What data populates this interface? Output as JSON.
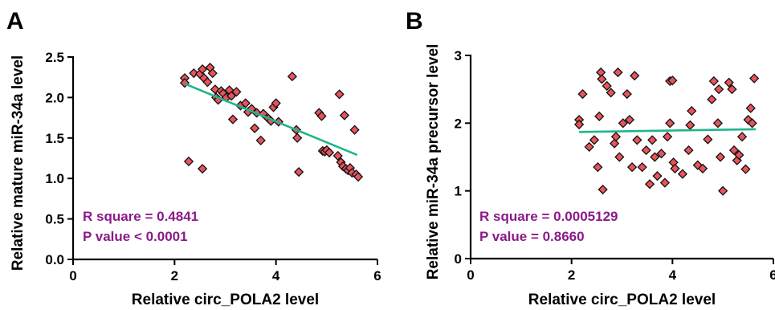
{
  "chart_data": [
    {
      "type": "scatter",
      "panel_label": "A",
      "xlabel": "Relative circ_POLA2 level",
      "ylabel": "Relative mature miR-34a level",
      "xlim": [
        0,
        6
      ],
      "ylim": [
        0,
        2.5
      ],
      "x_ticks": [
        "0",
        "2",
        "4",
        "6"
      ],
      "y_ticks": [
        "0.0",
        "0.5",
        "1.0",
        "1.5",
        "2.0",
        "2.5"
      ],
      "annotations": [
        "R square = 0.4841",
        "P value < 0.0001"
      ],
      "annotation_color": "#8b1a89",
      "marker_color": "#e8545a",
      "fit_line_color": "#1fb58a",
      "fit_line": {
        "x": [
          2.2,
          5.6
        ],
        "y": [
          2.17,
          1.29
        ]
      },
      "points": [
        [
          2.2,
          2.24
        ],
        [
          2.2,
          2.18
        ],
        [
          2.28,
          1.21
        ],
        [
          2.38,
          2.3
        ],
        [
          2.5,
          2.29
        ],
        [
          2.55,
          2.35
        ],
        [
          2.58,
          2.24
        ],
        [
          2.65,
          2.19
        ],
        [
          2.7,
          2.37
        ],
        [
          2.75,
          2.3
        ],
        [
          2.8,
          2.1
        ],
        [
          2.82,
          2.0
        ],
        [
          2.86,
          1.97
        ],
        [
          2.92,
          2.08
        ],
        [
          2.96,
          2.05
        ],
        [
          3.02,
          2.0
        ],
        [
          3.08,
          2.09
        ],
        [
          3.12,
          2.02
        ],
        [
          3.15,
          1.73
        ],
        [
          3.22,
          2.07
        ],
        [
          3.3,
          1.9
        ],
        [
          3.4,
          1.93
        ],
        [
          3.45,
          1.82
        ],
        [
          3.52,
          1.86
        ],
        [
          3.58,
          1.62
        ],
        [
          3.62,
          1.81
        ],
        [
          3.7,
          1.47
        ],
        [
          3.75,
          1.8
        ],
        [
          3.85,
          1.74
        ],
        [
          3.9,
          1.71
        ],
        [
          3.95,
          1.88
        ],
        [
          4.0,
          1.93
        ],
        [
          4.05,
          1.7
        ],
        [
          4.32,
          2.26
        ],
        [
          4.4,
          1.6
        ],
        [
          4.42,
          1.5
        ],
        [
          4.45,
          1.08
        ],
        [
          4.85,
          1.81
        ],
        [
          4.9,
          1.77
        ],
        [
          4.92,
          1.34
        ],
        [
          4.96,
          1.33
        ],
        [
          5.0,
          1.35
        ],
        [
          5.05,
          1.32
        ],
        [
          5.22,
          1.28
        ],
        [
          5.25,
          2.04
        ],
        [
          5.28,
          1.2
        ],
        [
          5.32,
          1.15
        ],
        [
          5.35,
          1.78
        ],
        [
          5.38,
          1.12
        ],
        [
          5.42,
          1.1
        ],
        [
          5.46,
          1.13
        ],
        [
          5.5,
          1.07
        ],
        [
          5.55,
          1.6
        ],
        [
          5.58,
          1.05
        ],
        [
          5.62,
          1.02
        ],
        [
          2.55,
          1.12
        ]
      ]
    },
    {
      "type": "scatter",
      "panel_label": "B",
      "xlabel": "Relative circ_POLA2 level",
      "ylabel": "Relative miR-34a precursor level",
      "xlim": [
        0,
        6
      ],
      "ylim": [
        0,
        3
      ],
      "x_ticks": [
        "0",
        "2",
        "4",
        "6"
      ],
      "y_ticks": [
        "0",
        "1",
        "2",
        "3"
      ],
      "annotations": [
        "R square = 0.0005129",
        "P value = 0.8660"
      ],
      "annotation_color": "#8b1a89",
      "marker_color": "#e8545a",
      "fit_line_color": "#1fb58a",
      "fit_line": {
        "x": [
          2.15,
          5.65
        ],
        "y": [
          1.87,
          1.91
        ]
      },
      "points": [
        [
          2.15,
          2.05
        ],
        [
          2.15,
          1.98
        ],
        [
          2.22,
          2.43
        ],
        [
          2.35,
          1.65
        ],
        [
          2.45,
          1.75
        ],
        [
          2.52,
          1.35
        ],
        [
          2.55,
          2.1
        ],
        [
          2.58,
          2.75
        ],
        [
          2.6,
          2.65
        ],
        [
          2.62,
          1.02
        ],
        [
          2.7,
          2.55
        ],
        [
          2.78,
          2.45
        ],
        [
          2.85,
          1.7
        ],
        [
          2.88,
          1.8
        ],
        [
          2.92,
          2.75
        ],
        [
          2.95,
          1.5
        ],
        [
          3.02,
          2.0
        ],
        [
          3.1,
          2.43
        ],
        [
          3.15,
          2.05
        ],
        [
          3.2,
          1.35
        ],
        [
          3.25,
          2.7
        ],
        [
          3.3,
          1.75
        ],
        [
          3.4,
          1.35
        ],
        [
          3.48,
          1.6
        ],
        [
          3.55,
          1.1
        ],
        [
          3.6,
          1.75
        ],
        [
          3.65,
          1.5
        ],
        [
          3.7,
          1.22
        ],
        [
          3.78,
          1.55
        ],
        [
          3.85,
          1.12
        ],
        [
          3.9,
          1.8
        ],
        [
          3.95,
          2.62
        ],
        [
          4.0,
          2.63
        ],
        [
          3.95,
          2.0
        ],
        [
          4.02,
          1.42
        ],
        [
          4.05,
          1.33
        ],
        [
          4.2,
          1.25
        ],
        [
          4.32,
          1.6
        ],
        [
          4.35,
          1.97
        ],
        [
          4.38,
          2.18
        ],
        [
          4.5,
          1.38
        ],
        [
          4.6,
          1.33
        ],
        [
          4.7,
          1.76
        ],
        [
          4.78,
          2.35
        ],
        [
          4.82,
          2.62
        ],
        [
          4.9,
          2.0
        ],
        [
          4.92,
          2.5
        ],
        [
          4.95,
          1.5
        ],
        [
          5.0,
          1.0
        ],
        [
          5.12,
          2.6
        ],
        [
          5.18,
          2.5
        ],
        [
          5.22,
          1.6
        ],
        [
          5.28,
          1.45
        ],
        [
          5.32,
          1.53
        ],
        [
          5.38,
          1.8
        ],
        [
          5.45,
          1.32
        ],
        [
          5.5,
          2.05
        ],
        [
          5.55,
          2.22
        ],
        [
          5.58,
          2.0
        ],
        [
          5.62,
          2.66
        ]
      ]
    }
  ]
}
